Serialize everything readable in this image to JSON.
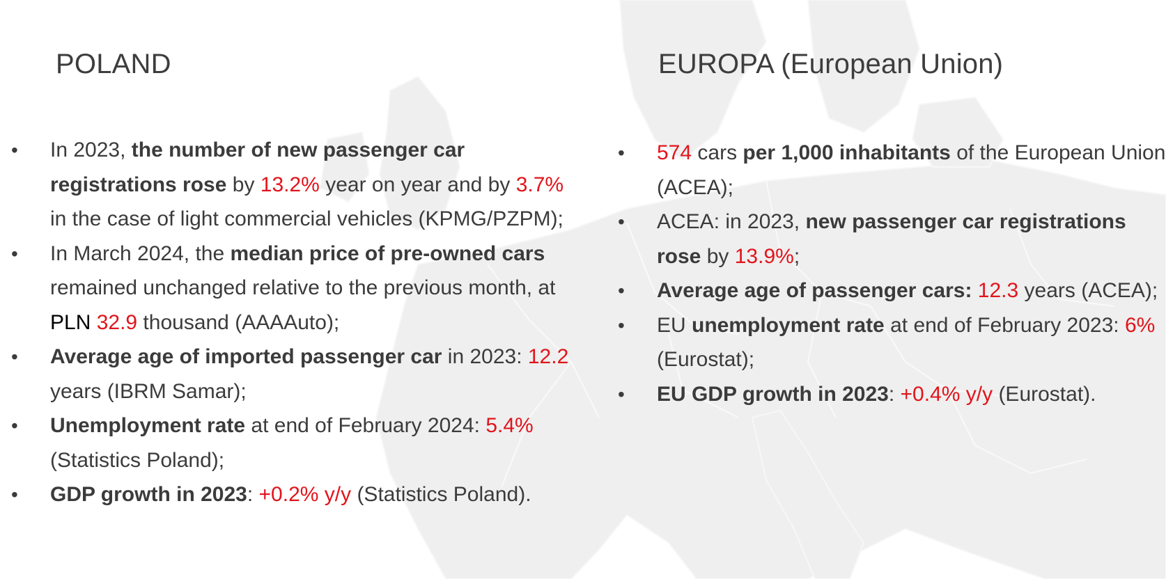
{
  "colors": {
    "highlight": "#e2141b",
    "text": "#3b3b3b",
    "map": "#ececec"
  },
  "bullet_glyph": "•",
  "left": {
    "title": "POLAND",
    "items": [
      {
        "parts": [
          {
            "text": "In 2023, "
          },
          {
            "text": "the number of new passenger car registrations rose",
            "bold": true
          },
          {
            "text": " by "
          },
          {
            "text": "13.2%",
            "red": true
          },
          {
            "text": " year on year and by "
          },
          {
            "text": "3.7%",
            "red": true
          },
          {
            "text": " in the case of light commercial vehicles (KPMG/PZPM);"
          }
        ]
      },
      {
        "parts": [
          {
            "text": "In March 2024, the "
          },
          {
            "text": "median price of pre-owned cars",
            "bold": true
          },
          {
            "text": " remained unchanged relative to the previous month, at "
          },
          {
            "text": "PLN",
            "black": true
          },
          {
            "text": " "
          },
          {
            "text": "32.9",
            "red": true
          },
          {
            "text": " thousand (AAAAuto);"
          }
        ]
      },
      {
        "parts": [
          {
            "text": "Average age of imported passenger car",
            "bold": true
          },
          {
            "text": " in 2023: "
          },
          {
            "text": "12.2",
            "red": true
          },
          {
            "text": " years (IBRM Samar);"
          }
        ]
      },
      {
        "parts": [
          {
            "text": "Unemployment rate",
            "bold": true
          },
          {
            "text": " at end of February 2024: "
          },
          {
            "text": "5.4%",
            "red": true
          },
          {
            "text": " (Statistics Poland);"
          }
        ]
      },
      {
        "parts": [
          {
            "text": "GDP growth in 2023",
            "bold": true
          },
          {
            "text": ": "
          },
          {
            "text": "+0.2% y/y",
            "red": true
          },
          {
            "text": " (Statistics Poland)."
          }
        ]
      }
    ]
  },
  "right": {
    "title": "EUROPA (European Union)",
    "items": [
      {
        "parts": [
          {
            "text": "574",
            "red": true
          },
          {
            "text": " cars "
          },
          {
            "text": "per 1,000 inhabitants",
            "bold": true
          },
          {
            "text": " of the European Union (ACEA);"
          }
        ]
      },
      {
        "parts": [
          {
            "text": "ACEA: in 2023, "
          },
          {
            "text": "new passenger car registrations rose",
            "bold": true
          },
          {
            "text": " by "
          },
          {
            "text": "13.9%",
            "red": true
          },
          {
            "text": ";"
          }
        ]
      },
      {
        "parts": [
          {
            "text": "Average age of passenger cars:",
            "bold": true
          },
          {
            "text": " "
          },
          {
            "text": "12.3",
            "red": true
          },
          {
            "text": " years (ACEA);"
          }
        ]
      },
      {
        "parts": [
          {
            "text": "EU "
          },
          {
            "text": "unemployment rate",
            "bold": true
          },
          {
            "text": " at end of February 2023: "
          },
          {
            "text": "6%",
            "red": true
          },
          {
            "text": " (Eurostat);"
          }
        ]
      },
      {
        "parts": [
          {
            "text": "EU GDP growth in 2023",
            "bold": true
          },
          {
            "text": ": "
          },
          {
            "text": "+0.4% y/y",
            "red": true
          },
          {
            "text": " (Eurostat)."
          }
        ]
      }
    ]
  }
}
